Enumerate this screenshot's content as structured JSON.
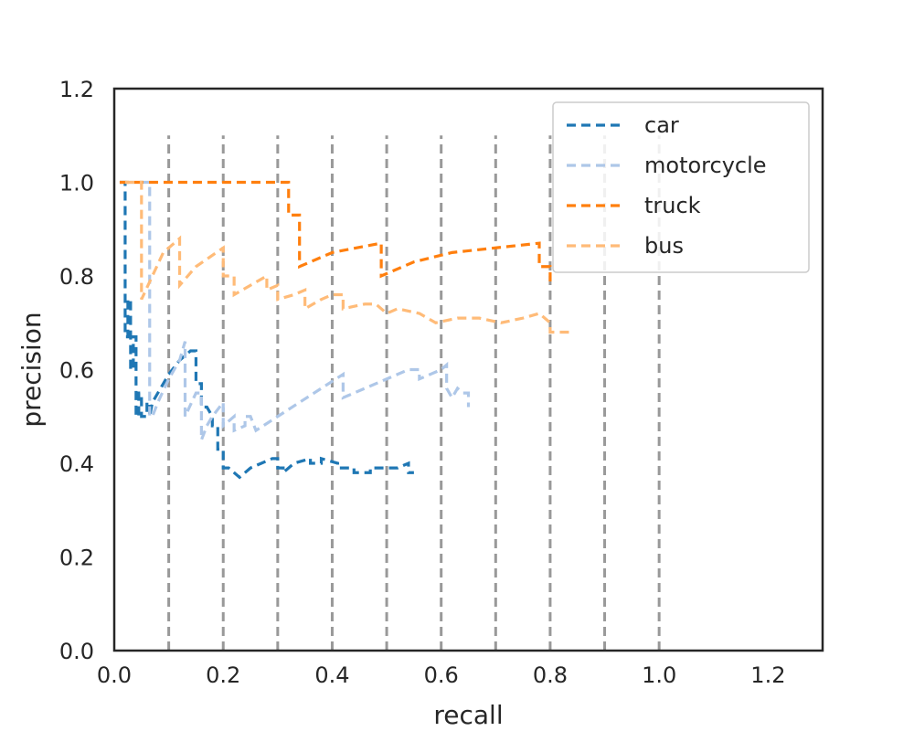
{
  "chart_data": {
    "type": "line",
    "title": "",
    "xlabel": "recall",
    "ylabel": "precision",
    "xlim": [
      0.0,
      1.3
    ],
    "ylim": [
      0.0,
      1.2
    ],
    "xticks": [
      0.0,
      0.2,
      0.4,
      0.6,
      0.8,
      1.0,
      1.2
    ],
    "yticks": [
      0.0,
      0.2,
      0.4,
      0.6,
      0.8,
      1.0,
      1.2
    ],
    "xtick_labels": [
      "0.0",
      "0.2",
      "0.4",
      "0.6",
      "0.8",
      "1.0",
      "1.2"
    ],
    "ytick_labels": [
      "0.0",
      "0.2",
      "0.4",
      "0.6",
      "0.8",
      "1.0",
      "1.2"
    ],
    "reference_lines": {
      "orientation": "vertical",
      "style": "dashed",
      "color": "#999999",
      "x": [
        0.1,
        0.2,
        0.3,
        0.4,
        0.5,
        0.6,
        0.7,
        0.8,
        0.9,
        1.0
      ],
      "y_range": [
        0.0,
        1.1
      ]
    },
    "legend_position": "top-right",
    "series": [
      {
        "name": "car",
        "color": "#1f77b4",
        "x": [
          0.01,
          0.02,
          0.02,
          0.025,
          0.025,
          0.03,
          0.03,
          0.035,
          0.035,
          0.04,
          0.04,
          0.045,
          0.045,
          0.05,
          0.05,
          0.06,
          0.06,
          0.065,
          0.065,
          0.07,
          0.08,
          0.09,
          0.1,
          0.12,
          0.14,
          0.15,
          0.15,
          0.16,
          0.16,
          0.17,
          0.18,
          0.18,
          0.19,
          0.19,
          0.2,
          0.2,
          0.21,
          0.21,
          0.23,
          0.25,
          0.27,
          0.29,
          0.3,
          0.3,
          0.31,
          0.31,
          0.33,
          0.36,
          0.36,
          0.38,
          0.38,
          0.41,
          0.41,
          0.44,
          0.44,
          0.47,
          0.47,
          0.5,
          0.52,
          0.54,
          0.54,
          0.55
        ],
        "y": [
          1.0,
          1.0,
          0.67,
          0.67,
          0.75,
          0.75,
          0.6,
          0.6,
          0.67,
          0.67,
          0.5,
          0.5,
          0.55,
          0.55,
          0.5,
          0.5,
          0.53,
          0.53,
          0.5,
          0.53,
          0.55,
          0.57,
          0.59,
          0.62,
          0.64,
          0.64,
          0.57,
          0.57,
          0.52,
          0.52,
          0.5,
          0.48,
          0.48,
          0.43,
          0.43,
          0.39,
          0.39,
          0.39,
          0.37,
          0.39,
          0.4,
          0.41,
          0.41,
          0.39,
          0.39,
          0.38,
          0.4,
          0.41,
          0.4,
          0.4,
          0.41,
          0.4,
          0.39,
          0.39,
          0.38,
          0.38,
          0.39,
          0.39,
          0.39,
          0.4,
          0.38,
          0.38
        ]
      },
      {
        "name": "motorcycle",
        "color": "#aec7e8",
        "x": [
          0.02,
          0.06,
          0.065,
          0.065,
          0.07,
          0.08,
          0.1,
          0.12,
          0.13,
          0.13,
          0.15,
          0.16,
          0.16,
          0.17,
          0.18,
          0.2,
          0.2,
          0.22,
          0.22,
          0.24,
          0.24,
          0.25,
          0.26,
          0.26,
          0.3,
          0.34,
          0.38,
          0.42,
          0.42,
          0.46,
          0.5,
          0.54,
          0.55,
          0.56,
          0.56,
          0.6,
          0.61,
          0.61,
          0.62,
          0.63,
          0.64,
          0.65,
          0.65
        ],
        "y": [
          1.0,
          1.0,
          1.0,
          0.5,
          0.5,
          0.53,
          0.58,
          0.62,
          0.66,
          0.5,
          0.55,
          0.55,
          0.45,
          0.48,
          0.5,
          0.53,
          0.48,
          0.5,
          0.47,
          0.48,
          0.5,
          0.5,
          0.47,
          0.47,
          0.5,
          0.53,
          0.56,
          0.59,
          0.54,
          0.56,
          0.58,
          0.6,
          0.6,
          0.6,
          0.58,
          0.6,
          0.61,
          0.56,
          0.54,
          0.56,
          0.55,
          0.55,
          0.52
        ]
      },
      {
        "name": "truck",
        "color": "#ff7f0e",
        "x": [
          0.01,
          0.32,
          0.32,
          0.34,
          0.34,
          0.4,
          0.49,
          0.49,
          0.55,
          0.62,
          0.7,
          0.78,
          0.78,
          0.8,
          0.8
        ],
        "y": [
          1.0,
          1.0,
          0.93,
          0.93,
          0.82,
          0.85,
          0.87,
          0.8,
          0.83,
          0.85,
          0.86,
          0.87,
          0.82,
          0.82,
          0.78
        ]
      },
      {
        "name": "bus",
        "color": "#ffbb78",
        "x": [
          0.02,
          0.05,
          0.05,
          0.07,
          0.09,
          0.12,
          0.12,
          0.15,
          0.2,
          0.2,
          0.22,
          0.22,
          0.25,
          0.28,
          0.28,
          0.3,
          0.3,
          0.33,
          0.35,
          0.35,
          0.38,
          0.4,
          0.42,
          0.42,
          0.46,
          0.48,
          0.5,
          0.52,
          0.56,
          0.59,
          0.63,
          0.67,
          0.71,
          0.75,
          0.78,
          0.8,
          0.8,
          0.84
        ],
        "y": [
          1.0,
          1.0,
          0.75,
          0.8,
          0.85,
          0.88,
          0.78,
          0.82,
          0.86,
          0.8,
          0.8,
          0.76,
          0.78,
          0.8,
          0.77,
          0.78,
          0.75,
          0.76,
          0.77,
          0.73,
          0.75,
          0.76,
          0.76,
          0.73,
          0.74,
          0.74,
          0.72,
          0.73,
          0.72,
          0.7,
          0.71,
          0.71,
          0.7,
          0.71,
          0.72,
          0.7,
          0.68,
          0.68
        ]
      }
    ]
  }
}
